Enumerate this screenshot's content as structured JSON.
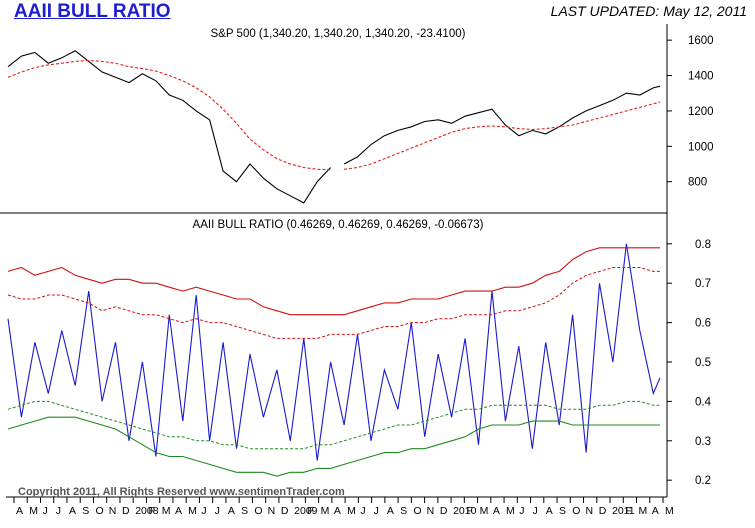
{
  "header": {
    "title": "AAII BULL RATIO",
    "updated": "LAST UPDATED:  May 12, 2011"
  },
  "footer": {
    "copyright": "Copyright 2011, All Rights Reserved  www.sentimenTrader.com"
  },
  "colors": {
    "sp_line": "#000000",
    "sp_ma": "#e02020",
    "ratio_line": "#1a1acc",
    "upper_band": "#d01010",
    "lower_band": "#1f8a1f"
  },
  "chart_data": [
    {
      "type": "line",
      "title": "S&P 500 (1,340.20, 1,340.20, 1,340.20, -23.4100)",
      "ylim": [
        640,
        1680
      ],
      "yticks": [
        "800",
        "1000",
        "1200",
        "1400",
        "1600"
      ],
      "x_index": [
        0,
        2,
        4,
        6,
        8,
        10,
        12,
        14,
        16,
        18,
        20,
        22,
        24,
        26,
        28,
        30,
        32,
        34,
        36,
        38,
        40,
        42,
        44,
        46,
        48
      ],
      "series": [
        {
          "role": "price",
          "values": [
            1450,
            1510,
            1530,
            1470,
            1500,
            1540,
            1480,
            1420,
            1390,
            1360,
            1410,
            1370,
            1290,
            1260,
            1200,
            1150,
            860,
            800,
            900,
            820,
            760,
            720,
            680,
            800,
            880
          ]
        },
        {
          "role": "moving-average",
          "values": [
            1390,
            1420,
            1445,
            1460,
            1470,
            1480,
            1485,
            1480,
            1470,
            1450,
            1440,
            1425,
            1400,
            1370,
            1330,
            1280,
            1210,
            1130,
            1040,
            980,
            930,
            900,
            880,
            870,
            868
          ]
        }
      ],
      "x_index_2": [
        50,
        52,
        54,
        56,
        58,
        60,
        62,
        64,
        66,
        68,
        70,
        72,
        74,
        76,
        78,
        80,
        82,
        84,
        86,
        88,
        90,
        92,
        94,
        96,
        97
      ],
      "series_2": [
        {
          "role": "price",
          "values": [
            900,
            940,
            1010,
            1060,
            1090,
            1110,
            1140,
            1150,
            1130,
            1170,
            1190,
            1210,
            1120,
            1060,
            1090,
            1070,
            1110,
            1160,
            1200,
            1230,
            1260,
            1300,
            1290,
            1330,
            1340
          ]
        },
        {
          "role": "moving-average",
          "values": [
            870,
            880,
            900,
            930,
            960,
            990,
            1020,
            1050,
            1080,
            1100,
            1110,
            1115,
            1110,
            1100,
            1095,
            1100,
            1110,
            1120,
            1140,
            1160,
            1180,
            1200,
            1220,
            1240,
            1250
          ]
        }
      ]
    },
    {
      "type": "line",
      "title": "AAII BULL RATIO (0.46269, 0.46269, 0.46269, -0.06673)",
      "ylim": [
        0.17,
        0.83
      ],
      "yticks": [
        "0.2",
        "0.3",
        "0.4",
        "0.5",
        "0.6",
        "0.7",
        "0.8"
      ],
      "x": [
        0,
        2,
        4,
        6,
        8,
        10,
        12,
        14,
        16,
        18,
        20,
        22,
        24,
        26,
        28,
        30,
        32,
        34,
        36,
        38,
        40,
        42,
        44,
        46,
        48,
        50,
        52,
        54,
        56,
        58,
        60,
        62,
        64,
        66,
        68,
        70,
        72,
        74,
        76,
        78,
        80,
        82,
        84,
        86,
        88,
        90,
        92,
        94,
        96,
        97
      ],
      "series": [
        {
          "role": "bull-ratio",
          "values": [
            0.61,
            0.36,
            0.55,
            0.42,
            0.58,
            0.44,
            0.68,
            0.4,
            0.55,
            0.3,
            0.5,
            0.26,
            0.62,
            0.35,
            0.67,
            0.3,
            0.55,
            0.28,
            0.52,
            0.36,
            0.48,
            0.3,
            0.56,
            0.25,
            0.5,
            0.34,
            0.57,
            0.3,
            0.48,
            0.38,
            0.6,
            0.31,
            0.52,
            0.36,
            0.56,
            0.29,
            0.68,
            0.35,
            0.54,
            0.28,
            0.55,
            0.34,
            0.62,
            0.27,
            0.7,
            0.5,
            0.8,
            0.58,
            0.42,
            0.46
          ]
        },
        {
          "role": "upper-band",
          "values": [
            0.73,
            0.74,
            0.72,
            0.73,
            0.74,
            0.72,
            0.71,
            0.7,
            0.71,
            0.71,
            0.7,
            0.7,
            0.69,
            0.68,
            0.69,
            0.68,
            0.67,
            0.66,
            0.66,
            0.64,
            0.63,
            0.62,
            0.62,
            0.62,
            0.62,
            0.62,
            0.63,
            0.64,
            0.65,
            0.65,
            0.66,
            0.66,
            0.66,
            0.67,
            0.68,
            0.68,
            0.68,
            0.69,
            0.69,
            0.7,
            0.72,
            0.73,
            0.76,
            0.78,
            0.79,
            0.79,
            0.79,
            0.79,
            0.79,
            0.79
          ]
        },
        {
          "role": "upper-band-inner",
          "values": [
            0.67,
            0.66,
            0.66,
            0.67,
            0.67,
            0.66,
            0.65,
            0.63,
            0.64,
            0.63,
            0.62,
            0.62,
            0.61,
            0.6,
            0.61,
            0.6,
            0.6,
            0.59,
            0.58,
            0.57,
            0.56,
            0.56,
            0.56,
            0.56,
            0.57,
            0.57,
            0.57,
            0.58,
            0.59,
            0.59,
            0.6,
            0.6,
            0.61,
            0.61,
            0.62,
            0.62,
            0.62,
            0.63,
            0.63,
            0.64,
            0.65,
            0.67,
            0.7,
            0.72,
            0.73,
            0.74,
            0.74,
            0.74,
            0.73,
            0.73
          ]
        },
        {
          "role": "lower-band-inner",
          "values": [
            0.38,
            0.39,
            0.4,
            0.4,
            0.39,
            0.38,
            0.37,
            0.36,
            0.35,
            0.34,
            0.33,
            0.32,
            0.31,
            0.31,
            0.3,
            0.3,
            0.29,
            0.29,
            0.28,
            0.28,
            0.28,
            0.28,
            0.28,
            0.29,
            0.29,
            0.3,
            0.31,
            0.32,
            0.33,
            0.34,
            0.34,
            0.35,
            0.36,
            0.37,
            0.38,
            0.38,
            0.39,
            0.39,
            0.39,
            0.39,
            0.39,
            0.38,
            0.38,
            0.38,
            0.39,
            0.39,
            0.4,
            0.4,
            0.39,
            0.39
          ]
        },
        {
          "role": "lower-band",
          "values": [
            0.33,
            0.34,
            0.35,
            0.36,
            0.36,
            0.36,
            0.35,
            0.34,
            0.33,
            0.31,
            0.29,
            0.27,
            0.26,
            0.26,
            0.25,
            0.24,
            0.23,
            0.22,
            0.22,
            0.22,
            0.21,
            0.22,
            0.22,
            0.23,
            0.23,
            0.24,
            0.25,
            0.26,
            0.27,
            0.27,
            0.28,
            0.28,
            0.29,
            0.3,
            0.31,
            0.33,
            0.34,
            0.34,
            0.34,
            0.35,
            0.35,
            0.35,
            0.34,
            0.34,
            0.34,
            0.34,
            0.34,
            0.34,
            0.34,
            0.34
          ]
        }
      ],
      "x_months": [
        "A",
        "M",
        "J",
        "J",
        "A",
        "S",
        "O",
        "N",
        "D",
        "2008",
        "F",
        "M",
        "A",
        "M",
        "J",
        "J",
        "A",
        "S",
        "O",
        "N",
        "D",
        "2009",
        "F",
        "M",
        "A",
        "M",
        "J",
        "J",
        "A",
        "S",
        "O",
        "N",
        "D",
        "2010",
        "F",
        "M",
        "A",
        "M",
        "J",
        "J",
        "A",
        "S",
        "O",
        "N",
        "D",
        "2011",
        "F",
        "M",
        "A",
        "M"
      ]
    }
  ]
}
